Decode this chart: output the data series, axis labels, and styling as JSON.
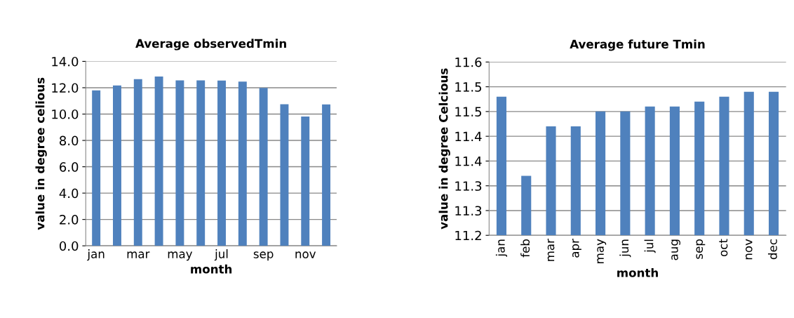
{
  "chart_data": [
    {
      "type": "bar",
      "title": "Average observedTmin",
      "xlabel": "month",
      "ylabel": "value in degree celious",
      "categories": [
        "jan",
        null,
        "mar",
        null,
        "may",
        null,
        "jul",
        null,
        "sep",
        null,
        "nov",
        null
      ],
      "values": [
        11.8,
        12.17,
        12.65,
        12.85,
        12.56,
        12.56,
        12.54,
        12.47,
        11.98,
        10.75,
        9.82,
        10.73
      ],
      "color": "#4f81bd",
      "ylim": [
        0,
        14
      ],
      "yticks": [
        {
          "value": 0,
          "label": "0.0"
        },
        {
          "value": 2,
          "label": "2.0"
        },
        {
          "value": 4,
          "label": "4.0"
        },
        {
          "value": 6,
          "label": "6.0"
        },
        {
          "value": 8,
          "label": "8.0"
        },
        {
          "value": 10,
          "label": "10.0"
        },
        {
          "value": 12,
          "label": "12.0"
        },
        {
          "value": 14,
          "label": "14.0"
        }
      ],
      "grid": "y"
    },
    {
      "type": "bar",
      "title": "Average future Tmin",
      "xlabel": "month",
      "ylabel": "value in degree Celcious",
      "categories": [
        "jan",
        "feb",
        "mar",
        "apr",
        "may",
        "jun",
        "jul",
        "aug",
        "sep",
        "oct",
        "nov",
        "dec"
      ],
      "values": [
        11.48,
        11.32,
        11.42,
        11.42,
        11.45,
        11.45,
        11.46,
        11.46,
        11.47,
        11.48,
        11.49,
        11.49
      ],
      "color": "#4f81bd",
      "ylim": [
        11.2,
        11.55
      ],
      "yticks": [
        {
          "value": 11.2,
          "label": "11.2"
        },
        {
          "value": 11.25,
          "label": "11.3"
        },
        {
          "value": 11.3,
          "label": "11.3"
        },
        {
          "value": 11.35,
          "label": "11.4"
        },
        {
          "value": 11.4,
          "label": "11.4"
        },
        {
          "value": 11.45,
          "label": "11.5"
        },
        {
          "value": 11.5,
          "label": "11.5"
        },
        {
          "value": 11.55,
          "label": "11.6"
        }
      ],
      "grid": "y"
    }
  ]
}
